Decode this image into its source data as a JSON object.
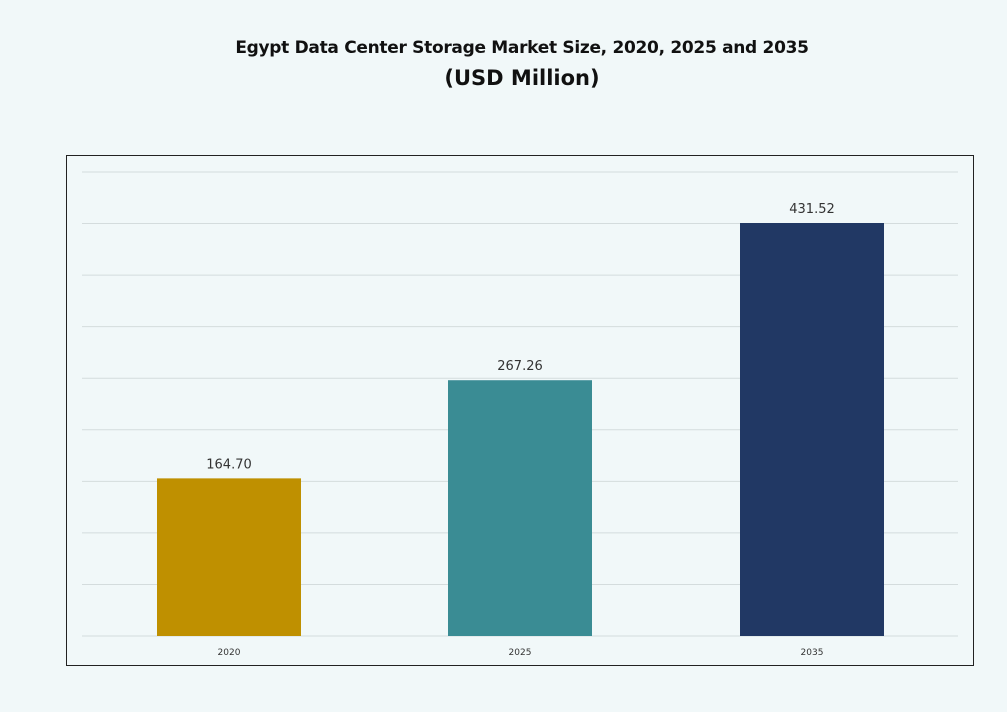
{
  "chart_data": {
    "type": "bar",
    "title": "Egypt Data Center Storage Market Size, 2020, 2025 and 2035",
    "subtitle": "(USD Million)",
    "categories": [
      "2020",
      "2025",
      "2035"
    ],
    "values": [
      164.7,
      267.26,
      431.52
    ],
    "value_labels": [
      "164.70",
      "267.26",
      "431.52"
    ],
    "colors": [
      "#bf9000",
      "#3a8c94",
      "#213864"
    ],
    "xlabel": "",
    "ylabel": "",
    "ylim": [
      0,
      485
    ],
    "grid": true,
    "y_axis_labels_shown": false,
    "legend": "none"
  }
}
